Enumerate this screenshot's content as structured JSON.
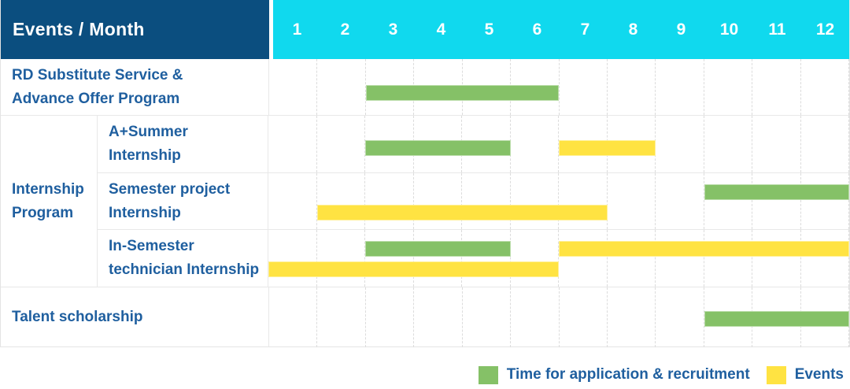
{
  "colors": {
    "header_blue": "#0b4e7f",
    "header_cyan": "#10d9ee",
    "bar_green": "#85c167",
    "bar_yellow": "#ffe342",
    "text_blue": "#1f5f9f"
  },
  "chart_data": {
    "type": "gantt",
    "x_unit": "month",
    "corner_label": "Events / Month",
    "x_ticks": [
      "1",
      "2",
      "3",
      "4",
      "5",
      "6",
      "7",
      "8",
      "9",
      "10",
      "11",
      "12"
    ],
    "legend": [
      {
        "type": "recruitment",
        "label": "Time for application & recruitment",
        "color": "#85c167"
      },
      {
        "type": "event",
        "label": "Events",
        "color": "#ffe342"
      }
    ],
    "group_label": "Internship Program",
    "group_label_lines": [
      "Internship",
      "Program"
    ],
    "rows": [
      {
        "label": "RD Substitute Service & Advance Offer Program",
        "label_lines": [
          "RD Substitute Service &",
          "Advance Offer Program"
        ],
        "group": null,
        "bars": [
          {
            "type": "recruitment",
            "start_month": 3,
            "end_month": 6,
            "lane": 0
          }
        ]
      },
      {
        "label": "A+Summer Internship",
        "label_lines": [
          "A+Summer",
          "Internship"
        ],
        "group": "Internship Program",
        "bars": [
          {
            "type": "recruitment",
            "start_month": 3,
            "end_month": 5,
            "lane": 0
          },
          {
            "type": "event",
            "start_month": 7,
            "end_month": 8,
            "lane": 0
          }
        ]
      },
      {
        "label": "Semester project Internship",
        "label_lines": [
          "Semester project",
          "Internship"
        ],
        "group": "Internship Program",
        "bars": [
          {
            "type": "recruitment",
            "start_month": 10,
            "end_month": 12,
            "lane": 0
          },
          {
            "type": "event",
            "start_month": 2,
            "end_month": 7,
            "lane": 1
          }
        ]
      },
      {
        "label": "In-Semester technician Internship",
        "label_lines": [
          "In-Semester",
          "technician Internship"
        ],
        "group": "Internship Program",
        "bars": [
          {
            "type": "recruitment",
            "start_month": 3,
            "end_month": 5,
            "lane": 0
          },
          {
            "type": "event",
            "start_month": 7,
            "end_month": 12,
            "lane": 0
          },
          {
            "type": "event",
            "start_month": 1,
            "end_month": 6,
            "lane": 1
          }
        ]
      },
      {
        "label": "Talent scholarship",
        "label_lines": [
          "Talent scholarship"
        ],
        "group": null,
        "bars": [
          {
            "type": "recruitment",
            "start_month": 10,
            "end_month": 12,
            "lane": 0
          }
        ]
      }
    ]
  }
}
